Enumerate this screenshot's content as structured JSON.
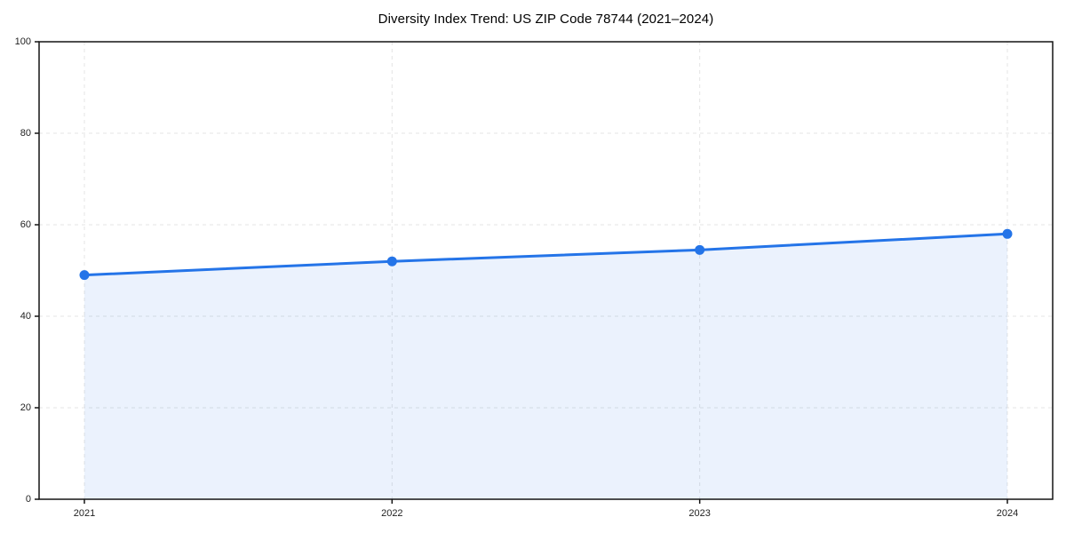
{
  "page": {
    "background_color": "#ffffff"
  },
  "chart_data": {
    "type": "line",
    "title": "Diversity Index Trend: US ZIP Code 78744 (2021–2024)",
    "categories": [
      "2021",
      "2022",
      "2023",
      "2024"
    ],
    "series": [
      {
        "name": "Diversity Index",
        "values": [
          49,
          52,
          54.5,
          58
        ]
      }
    ],
    "xlabel": "",
    "ylabel": "",
    "ylim": [
      0,
      100
    ],
    "yticks": [
      0,
      20,
      40,
      60,
      80,
      100
    ],
    "grid": true,
    "grid_style": "dashed",
    "legend": false,
    "area_fill": true,
    "marker": "circle",
    "colors": {
      "line": "#2474e8",
      "marker": "#2474e8",
      "fill": "#2474e8",
      "fill_opacity": 0.09,
      "grid": "#e4e4e4",
      "axis": "#141414",
      "tick_label": "#1f1f1f",
      "title": "#000000"
    }
  }
}
